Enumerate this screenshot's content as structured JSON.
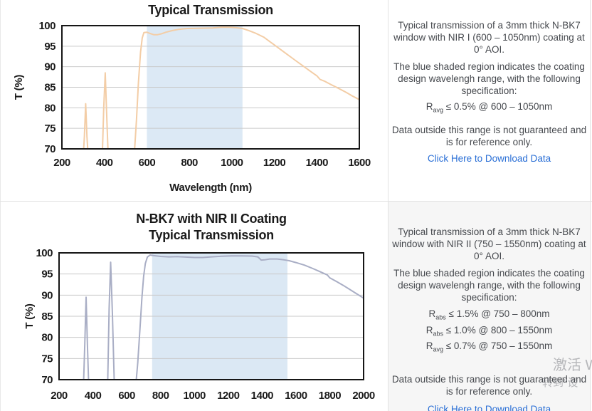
{
  "top_section": {
    "description_p1": "Typical transmission of a 3mm thick N-BK7 window with NIR I (600 – 1050nm) coating at 0° AOI.",
    "description_p2": "The blue shaded region indicates the coating design wavelengh range, with the following specification:",
    "specs": [
      {
        "symbol": "R",
        "subscript": "avg",
        "condition": " ≤ 0.5% @ 600 – 1050nm"
      }
    ],
    "description_p3": "Data outside this range is not guaranteed and is for reference only.",
    "download_link": "Click Here to Download Data"
  },
  "bottom_section": {
    "description_p1": "Typical transmission of a 3mm thick N-BK7 window with NIR II (750 – 1550nm) coating at 0° AOI.",
    "description_p2": "The blue shaded region indicates the coating design wavelengh range, with the following specification:",
    "specs": [
      {
        "symbol": "R",
        "subscript": "abs",
        "condition": " ≤ 1.5% @ 750 – 800nm"
      },
      {
        "symbol": "R",
        "subscript": "abs",
        "condition": " ≤ 1.0% @ 800 – 1550nm"
      },
      {
        "symbol": "R",
        "subscript": "avg",
        "condition": " ≤ 0.7% @ 750 – 1550nm"
      }
    ],
    "description_p3": "Data outside this range is not guaranteed and is for reference only.",
    "download_link": "Click Here to Download Data"
  },
  "watermark": {
    "line1": "激活 W",
    "line2": "转到\"设"
  },
  "colors": {
    "link": "#2a6fd6",
    "text": "#46494e",
    "divider": "#e2e2e2",
    "bottom_panel_bg": "#f6f6f6"
  },
  "chart_data": [
    {
      "type": "line",
      "title_lines": [
        "Typical Transmission"
      ],
      "xlabel": "Wavelength (nm)",
      "ylabel": "T (%)",
      "xlim": [
        200,
        1600
      ],
      "ylim": [
        70,
        100
      ],
      "xticks": [
        200,
        400,
        600,
        800,
        1000,
        1200,
        1400,
        1600
      ],
      "yticks": [
        70,
        75,
        80,
        85,
        90,
        95,
        100
      ],
      "grid": "horizontal",
      "shaded_region": {
        "x_start": 600,
        "x_end": 1050,
        "color": "#dce9f5"
      },
      "line_color": "#f3cda6",
      "series": [
        {
          "name": "N-BK7 with NIR I coating transmission",
          "points": [
            [
              300,
              68
            ],
            [
              306,
              73
            ],
            [
              312,
              81
            ],
            [
              318,
              73
            ],
            [
              324,
              68
            ],
            [
              390,
              68
            ],
            [
              397,
              80
            ],
            [
              404,
              88.5
            ],
            [
              411,
              78
            ],
            [
              418,
              68
            ],
            [
              540,
              68
            ],
            [
              551,
              77
            ],
            [
              560,
              86
            ],
            [
              570,
              93.5
            ],
            [
              578,
              97
            ],
            [
              586,
              98.3
            ],
            [
              600,
              98.4
            ],
            [
              615,
              98.1
            ],
            [
              632,
              97.8
            ],
            [
              650,
              97.8
            ],
            [
              668,
              98.0
            ],
            [
              690,
              98.4
            ],
            [
              720,
              98.8
            ],
            [
              750,
              99.1
            ],
            [
              790,
              99.3
            ],
            [
              830,
              99.35
            ],
            [
              870,
              99.4
            ],
            [
              910,
              99.45
            ],
            [
              950,
              99.6
            ],
            [
              990,
              99.6
            ],
            [
              1020,
              99.5
            ],
            [
              1050,
              99.3
            ],
            [
              1080,
              98.8
            ],
            [
              1110,
              98.2
            ],
            [
              1150,
              97.2
            ],
            [
              1200,
              95.3
            ],
            [
              1250,
              93.4
            ],
            [
              1300,
              91.5
            ],
            [
              1340,
              90.0
            ],
            [
              1375,
              88.7
            ],
            [
              1400,
              87.8
            ],
            [
              1415,
              86.9
            ],
            [
              1435,
              86.5
            ],
            [
              1465,
              85.7
            ],
            [
              1500,
              84.8
            ],
            [
              1540,
              83.7
            ],
            [
              1570,
              82.8
            ],
            [
              1600,
              82.0
            ]
          ]
        }
      ]
    },
    {
      "type": "line",
      "title_lines": [
        "N-BK7 with NIR II Coating",
        "Typical Transmission"
      ],
      "xlabel": "",
      "ylabel": "T (%)",
      "xlim": [
        200,
        2000
      ],
      "ylim": [
        70,
        100
      ],
      "xticks": [
        200,
        400,
        600,
        800,
        1000,
        1200,
        1400,
        1600,
        1800,
        2000
      ],
      "yticks": [
        70,
        75,
        80,
        85,
        90,
        95,
        100
      ],
      "grid": "horizontal",
      "shaded_region": {
        "x_start": 750,
        "x_end": 1550,
        "color": "#dbe8f4"
      },
      "line_color": "#a9aec5",
      "series": [
        {
          "name": "N-BK7 with NIR II coating transmission",
          "points": [
            [
              344,
              68
            ],
            [
              352,
              78
            ],
            [
              360,
              89.5
            ],
            [
              368,
              78
            ],
            [
              376,
              68
            ],
            [
              487,
              68
            ],
            [
              496,
              87
            ],
            [
              505,
              97.8
            ],
            [
              515,
              86
            ],
            [
              527,
              68
            ],
            [
              652,
              68
            ],
            [
              665,
              74
            ],
            [
              678,
              82
            ],
            [
              690,
              89.5
            ],
            [
              700,
              94.5
            ],
            [
              710,
              97.5
            ],
            [
              722,
              99.0
            ],
            [
              738,
              99.5
            ],
            [
              760,
              99.35
            ],
            [
              800,
              99.15
            ],
            [
              850,
              99.05
            ],
            [
              900,
              99.1
            ],
            [
              950,
              99.0
            ],
            [
              1000,
              98.9
            ],
            [
              1050,
              98.9
            ],
            [
              1100,
              99.05
            ],
            [
              1160,
              99.2
            ],
            [
              1220,
              99.3
            ],
            [
              1280,
              99.3
            ],
            [
              1340,
              99.25
            ],
            [
              1375,
              99.05
            ],
            [
              1395,
              98.3
            ],
            [
              1415,
              98.35
            ],
            [
              1445,
              98.55
            ],
            [
              1490,
              98.55
            ],
            [
              1530,
              98.35
            ],
            [
              1560,
              98.15
            ],
            [
              1600,
              97.7
            ],
            [
              1650,
              97.1
            ],
            [
              1700,
              96.3
            ],
            [
              1745,
              95.5
            ],
            [
              1785,
              94.8
            ],
            [
              1800,
              94.1
            ],
            [
              1840,
              93.2
            ],
            [
              1880,
              92.3
            ],
            [
              1920,
              91.3
            ],
            [
              1960,
              90.3
            ],
            [
              2000,
              89.3
            ]
          ]
        }
      ]
    }
  ]
}
